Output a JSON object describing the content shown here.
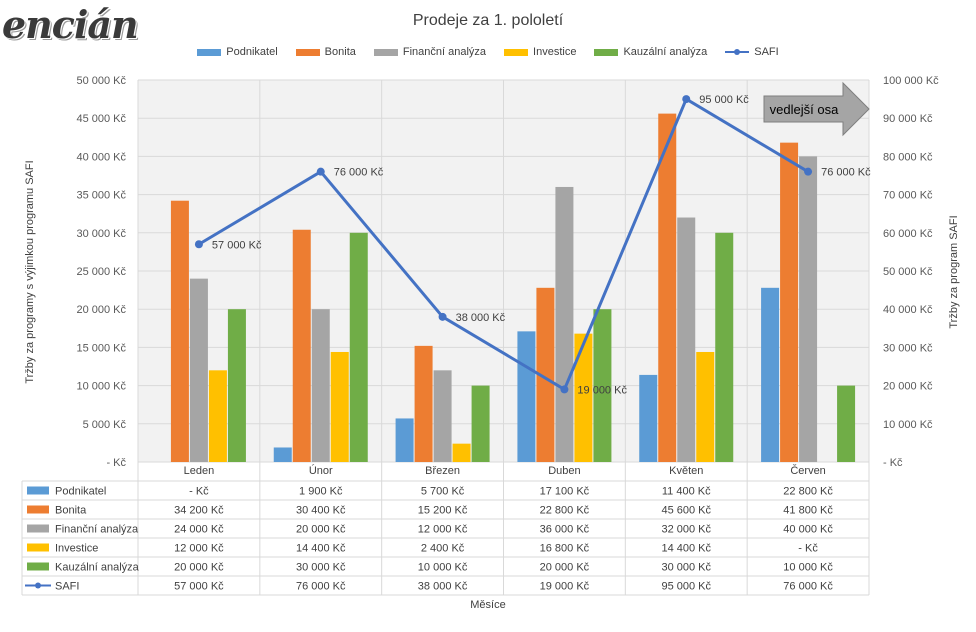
{
  "logo_text": "encián",
  "chart_data": {
    "type": "bar",
    "title": "Prodeje za 1. pololetí",
    "xlabel": "Měsíce",
    "ylabel_left": "Tržby za programy s výjimkou programu SAFI",
    "ylabel_right": "Tržby za program SAFI",
    "categories": [
      "Leden",
      "Únor",
      "Březen",
      "Duben",
      "Květen",
      "Červen"
    ],
    "ylim_left": [
      0,
      50000
    ],
    "ylim_right": [
      0,
      100000
    ],
    "y_ticks_left": [
      "-  Kč",
      "5 000 Kč",
      "10 000 Kč",
      "15 000 Kč",
      "20 000 Kč",
      "25 000 Kč",
      "30 000 Kč",
      "35 000 Kč",
      "40 000 Kč",
      "45 000 Kč",
      "50 000 Kč"
    ],
    "y_ticks_right": [
      "-  Kč",
      "10 000 Kč",
      "20 000 Kč",
      "30 000 Kč",
      "40 000 Kč",
      "50 000 Kč",
      "60 000 Kč",
      "70 000 Kč",
      "80 000 Kč",
      "90 000 Kč",
      "100 000 Kč"
    ],
    "grid": true,
    "legend_position": "top",
    "series": [
      {
        "name": "Podnikatel",
        "color": "#5B9BD5",
        "axis": "left",
        "kind": "bar",
        "values": [
          0,
          1900,
          5700,
          17100,
          11400,
          22800
        ],
        "table_values": [
          "-  Kč",
          "1 900 Kč",
          "5 700 Kč",
          "17 100 Kč",
          "11 400 Kč",
          "22 800 Kč"
        ]
      },
      {
        "name": "Bonita",
        "color": "#ED7D31",
        "axis": "left",
        "kind": "bar",
        "values": [
          34200,
          30400,
          15200,
          22800,
          45600,
          41800
        ],
        "table_values": [
          "34 200 Kč",
          "30 400 Kč",
          "15 200 Kč",
          "22 800 Kč",
          "45 600 Kč",
          "41 800 Kč"
        ]
      },
      {
        "name": "Finanční analýza",
        "color": "#A5A5A5",
        "axis": "left",
        "kind": "bar",
        "values": [
          24000,
          20000,
          12000,
          36000,
          32000,
          40000
        ],
        "table_values": [
          "24 000 Kč",
          "20 000 Kč",
          "12 000 Kč",
          "36 000 Kč",
          "32 000 Kč",
          "40 000 Kč"
        ]
      },
      {
        "name": "Investice",
        "color": "#FFC000",
        "axis": "left",
        "kind": "bar",
        "values": [
          12000,
          14400,
          2400,
          16800,
          14400,
          0
        ],
        "table_values": [
          "12 000 Kč",
          "14 400 Kč",
          "2 400 Kč",
          "16 800 Kč",
          "14 400 Kč",
          "-  Kč"
        ]
      },
      {
        "name": "Kauzální analýza",
        "color": "#70AD47",
        "axis": "left",
        "kind": "bar",
        "values": [
          20000,
          30000,
          10000,
          20000,
          30000,
          10000
        ],
        "table_values": [
          "20 000 Kč",
          "30 000 Kč",
          "10 000 Kč",
          "20 000 Kč",
          "30 000 Kč",
          "10 000 Kč"
        ]
      },
      {
        "name": "SAFI",
        "color": "#4472C4",
        "axis": "right",
        "kind": "line",
        "values": [
          57000,
          76000,
          38000,
          19000,
          95000,
          76000
        ],
        "table_values": [
          "57 000 Kč",
          "76 000 Kč",
          "38 000 Kč",
          "19 000 Kč",
          "95 000 Kč",
          "76 000 Kč"
        ],
        "data_labels": [
          "57 000 Kč",
          "76 000 Kč",
          "38 000 Kč",
          "19 000 Kč",
          "95 000 Kč",
          "76 000 Kč"
        ]
      }
    ],
    "annotation": {
      "text": "vedlejší osa",
      "fill": "#A5A5A5",
      "text_color": "#000000"
    }
  }
}
